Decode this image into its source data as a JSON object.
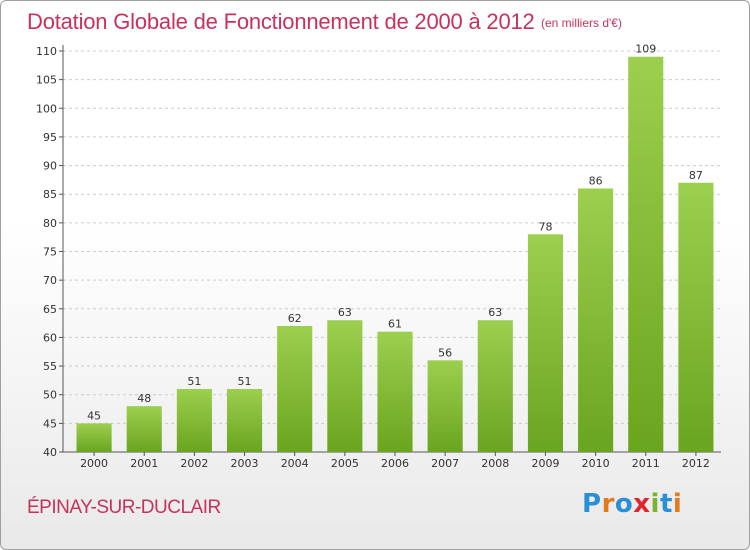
{
  "title": "Dotation Globale de Fonctionnement de 2000 à 2012",
  "subtitle": "(en milliers d'€)",
  "commune": "ÉPINAY-SUR-DUCLAIR",
  "logo": {
    "text": "Proxiti",
    "letter_colors": [
      "#2a8fd6",
      "#e07a1f",
      "#2a8fd6",
      "#e0242b",
      "#7ab32e",
      "#2a8fd6",
      "#e07a1f"
    ]
  },
  "colors": {
    "bar_top": "#9ccf4e",
    "bar_bottom": "#6aa51f",
    "title": "#c8325a",
    "grid": "#cccccc"
  },
  "chart_data": {
    "type": "bar",
    "categories": [
      "2000",
      "2001",
      "2002",
      "2003",
      "2004",
      "2005",
      "2006",
      "2007",
      "2008",
      "2009",
      "2010",
      "2011",
      "2012"
    ],
    "values": [
      45,
      48,
      51,
      51,
      62,
      63,
      61,
      56,
      63,
      78,
      86,
      109,
      87
    ],
    "ylim": [
      40,
      110
    ],
    "yticks": [
      40,
      45,
      50,
      55,
      60,
      65,
      70,
      75,
      80,
      85,
      90,
      95,
      100,
      105,
      110
    ],
    "grid": true,
    "xlabel": "",
    "ylabel": ""
  }
}
